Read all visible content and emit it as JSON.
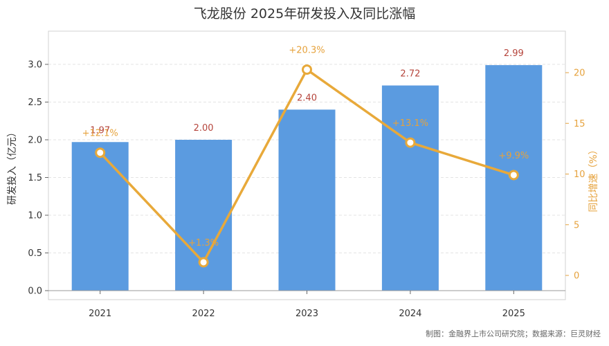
{
  "chart_data": {
    "type": "bar",
    "title": "飞龙股份 2025年研发投入及同比涨幅",
    "categories": [
      "2021",
      "2022",
      "2023",
      "2024",
      "2025"
    ],
    "series": [
      {
        "name": "研发投入（亿元）",
        "type": "bar",
        "axis": "left",
        "values": [
          1.97,
          2.0,
          2.4,
          2.72,
          2.99
        ],
        "labels": [
          "1.97",
          "2.00",
          "2.40",
          "2.72",
          "2.99"
        ]
      },
      {
        "name": "同比增速（%）",
        "type": "line",
        "axis": "right",
        "values": [
          12.1,
          1.3,
          20.3,
          13.1,
          9.9
        ],
        "labels": [
          "+12.1%",
          "+1.3%",
          "+20.3%",
          "+13.1%",
          "+9.9%"
        ]
      }
    ],
    "ylabel": "研发投入（亿元）",
    "ylabel_right": "同比增速（%）",
    "ylim": [
      0,
      3.0
    ],
    "yticks": [
      "0.0",
      "0.5",
      "1.0",
      "1.5",
      "2.0",
      "2.5",
      "3.0"
    ],
    "ylim_right": [
      0,
      20
    ],
    "yticks_right": [
      "0",
      "5",
      "10",
      "15",
      "20"
    ],
    "grid": true,
    "colors": {
      "bar": "#5b9be0",
      "line": "#e8a93a",
      "bar_label": "#b5443b",
      "right_axis": "#e6a23c"
    }
  },
  "source_note": "制图：金融界上市公司研究院；数据来源：巨灵财经"
}
